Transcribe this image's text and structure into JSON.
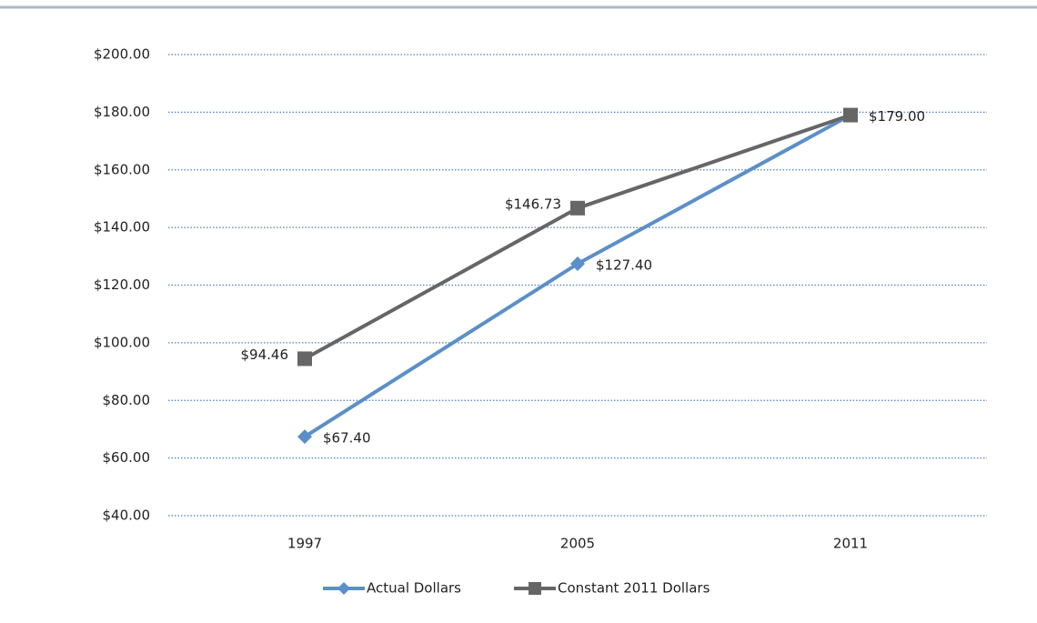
{
  "chart_data": {
    "type": "line",
    "categories": [
      "1997",
      "2005",
      "2011"
    ],
    "series": [
      {
        "name": "Actual Dollars",
        "color": "#5b8fc8",
        "marker": "diamond",
        "values": [
          67.4,
          127.4,
          179.0
        ],
        "value_labels": [
          "$67.40",
          "$127.40",
          "$179.00"
        ]
      },
      {
        "name": "Constant 2011 Dollars",
        "color": "#666666",
        "marker": "square",
        "values": [
          94.46,
          146.73,
          179.0
        ],
        "value_labels": [
          "$94.46",
          "$146.73",
          null
        ]
      }
    ],
    "ylim": [
      40,
      200
    ],
    "yticks": [
      {
        "value": 40,
        "label": "$40.00"
      },
      {
        "value": 60,
        "label": "$60.00"
      },
      {
        "value": 80,
        "label": "$80.00"
      },
      {
        "value": 100,
        "label": "$100.00"
      },
      {
        "value": 120,
        "label": "$120.00"
      },
      {
        "value": 140,
        "label": "$140.00"
      },
      {
        "value": 160,
        "label": "$160.00"
      },
      {
        "value": 180,
        "label": "$180.00"
      },
      {
        "value": 200,
        "label": "$200.00"
      }
    ],
    "grid": true,
    "legend": "bottom"
  }
}
